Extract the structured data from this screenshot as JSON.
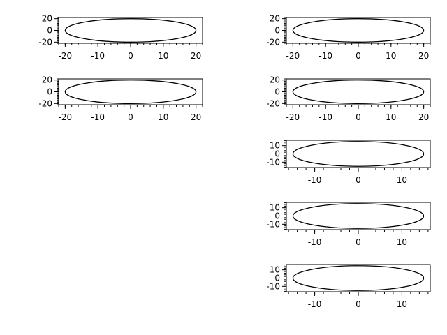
{
  "chart_data": [
    {
      "type": "line",
      "title": "",
      "xlabel": "",
      "ylabel": "",
      "xlim": [
        -22,
        22
      ],
      "ylim": [
        -22,
        22
      ],
      "xticks": [
        -20,
        -10,
        0,
        10,
        20
      ],
      "yticks": [
        -20,
        0,
        20
      ],
      "xtick_labels": [
        "-20",
        "-10",
        "0",
        "10",
        "20"
      ],
      "ytick_labels": [
        "-20",
        "0",
        "20"
      ],
      "grid": false,
      "series": [
        {
          "shape": "ellipse",
          "center": [
            0,
            0
          ],
          "x_semi_axis": 20,
          "y_semi_axis": 20
        }
      ]
    },
    {
      "type": "line",
      "title": "",
      "xlabel": "",
      "ylabel": "",
      "xlim": [
        -22,
        22
      ],
      "ylim": [
        -22,
        22
      ],
      "xticks": [
        -20,
        -10,
        0,
        10,
        20
      ],
      "yticks": [
        -20,
        0,
        20
      ],
      "xtick_labels": [
        "-20",
        "-10",
        "0",
        "10",
        "20"
      ],
      "ytick_labels": [
        "-20",
        "0",
        "20"
      ],
      "grid": false,
      "series": [
        {
          "shape": "ellipse",
          "center": [
            0,
            0
          ],
          "x_semi_axis": 20,
          "y_semi_axis": 20
        }
      ]
    },
    {
      "type": "line",
      "title": "",
      "xlabel": "",
      "ylabel": "",
      "xlim": [
        -22,
        22
      ],
      "ylim": [
        -22,
        22
      ],
      "xticks": [
        -20,
        -10,
        0,
        10,
        20
      ],
      "yticks": [
        -20,
        0,
        20
      ],
      "xtick_labels": [
        "-20",
        "-10",
        "0",
        "10",
        "20"
      ],
      "ytick_labels": [
        "-20",
        "0",
        "20"
      ],
      "grid": false,
      "series": [
        {
          "shape": "ellipse",
          "center": [
            0,
            0
          ],
          "x_semi_axis": 20,
          "y_semi_axis": 20
        }
      ]
    },
    {
      "type": "line",
      "title": "",
      "xlabel": "",
      "ylabel": "",
      "xlim": [
        -22,
        22
      ],
      "ylim": [
        -22,
        22
      ],
      "xticks": [
        -20,
        -10,
        0,
        10,
        20
      ],
      "yticks": [
        -20,
        0,
        20
      ],
      "xtick_labels": [
        "-20",
        "-10",
        "0",
        "10",
        "20"
      ],
      "ytick_labels": [
        "-20",
        "0",
        "20"
      ],
      "grid": false,
      "series": [
        {
          "shape": "ellipse",
          "center": [
            0,
            0
          ],
          "x_semi_axis": 20,
          "y_semi_axis": 20
        }
      ]
    },
    {
      "type": "line",
      "title": "",
      "xlabel": "",
      "ylabel": "",
      "xlim": [
        -16.5,
        16.5
      ],
      "ylim": [
        -16.5,
        16.5
      ],
      "xticks": [
        -10,
        0,
        10
      ],
      "yticks": [
        -10,
        0,
        10
      ],
      "xtick_labels": [
        "-10",
        "0",
        "10"
      ],
      "ytick_labels": [
        "-10",
        "0",
        "10"
      ],
      "grid": false,
      "series": [
        {
          "shape": "ellipse",
          "center": [
            0,
            0
          ],
          "x_semi_axis": 15,
          "y_semi_axis": 15
        }
      ]
    },
    {
      "type": "line",
      "title": "",
      "xlabel": "",
      "ylabel": "",
      "xlim": [
        -16.5,
        16.5
      ],
      "ylim": [
        -16.5,
        16.5
      ],
      "xticks": [
        -10,
        0,
        10
      ],
      "yticks": [
        -10,
        0,
        10
      ],
      "xtick_labels": [
        "-10",
        "0",
        "10"
      ],
      "ytick_labels": [
        "-10",
        "0",
        "10"
      ],
      "grid": false,
      "series": [
        {
          "shape": "ellipse",
          "center": [
            0,
            0
          ],
          "x_semi_axis": 15,
          "y_semi_axis": 15
        }
      ]
    },
    {
      "type": "line",
      "title": "",
      "xlabel": "",
      "ylabel": "",
      "xlim": [
        -16.5,
        16.5
      ],
      "ylim": [
        -16.5,
        16.5
      ],
      "xticks": [
        -10,
        0,
        10
      ],
      "yticks": [
        -10,
        0,
        10
      ],
      "xtick_labels": [
        "-10",
        "0",
        "10"
      ],
      "ytick_labels": [
        "-10",
        "0",
        "10"
      ],
      "grid": false,
      "series": [
        {
          "shape": "ellipse",
          "center": [
            0,
            0
          ],
          "x_semi_axis": 15,
          "y_semi_axis": 15
        }
      ]
    }
  ]
}
